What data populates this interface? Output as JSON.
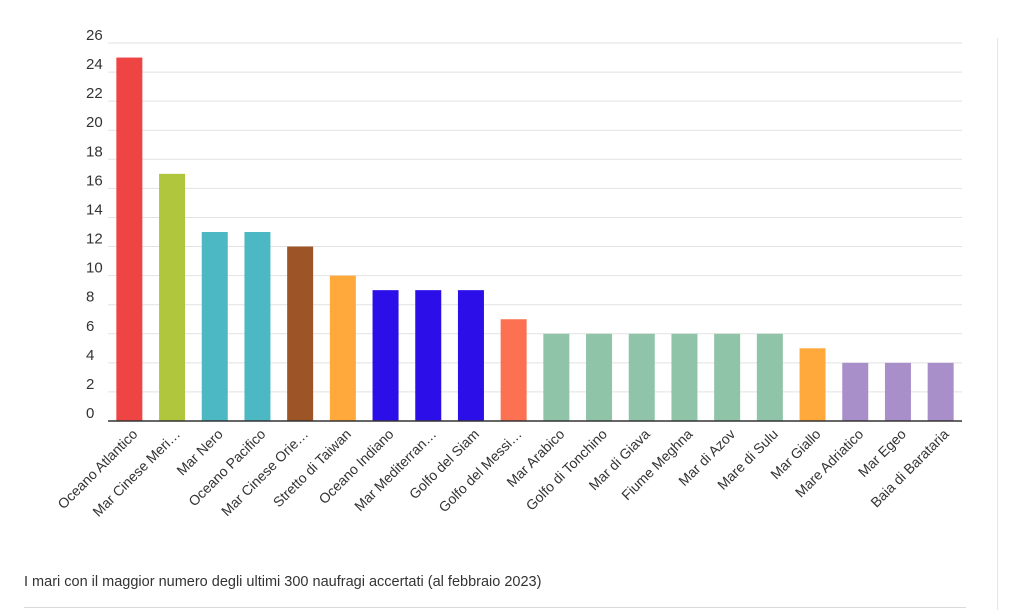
{
  "caption": "I mari con il maggior numero degli ultimi 300 naufragi accertati (al febbraio 2023)",
  "chart_data": {
    "type": "bar",
    "categories": [
      "Oceano Atlantico",
      "Mar Cinese Meri…",
      "Mar Nero",
      "Oceano Pacifico",
      "Mar Cinese Orie…",
      "Stretto di Taiwan",
      "Oceano Indiano",
      "Mar Mediterran…",
      "Golfo del Siam",
      "Golfo del Messi…",
      "Mar Arabico",
      "Golfo di Tonchino",
      "Mar di Giava",
      "Fiume Meghna",
      "Mar di Azov",
      "Mare di Sulu",
      "Mar Giallo",
      "Mare Adriatico",
      "Mar Egeo",
      "Baia di Barataria"
    ],
    "values": [
      25,
      17,
      13,
      13,
      12,
      10,
      9,
      9,
      9,
      7,
      6,
      6,
      6,
      6,
      6,
      6,
      5,
      4,
      4,
      4
    ],
    "colors": [
      "#ef4444",
      "#afc63d",
      "#4cb8c4",
      "#4cb8c4",
      "#9d5527",
      "#ffa83b",
      "#2c0ee8",
      "#2c0ee8",
      "#2c0ee8",
      "#fb7152",
      "#8fc4a9",
      "#8fc4a9",
      "#8fc4a9",
      "#8fc4a9",
      "#8fc4a9",
      "#8fc4a9",
      "#ffa83b",
      "#a98fca",
      "#a98fca",
      "#a98fca"
    ],
    "yticks": [
      0,
      2,
      4,
      6,
      8,
      10,
      12,
      14,
      16,
      18,
      20,
      22,
      24,
      26
    ],
    "ylim": [
      0,
      26
    ],
    "grid": true,
    "title": "",
    "xlabel": "",
    "ylabel": ""
  }
}
